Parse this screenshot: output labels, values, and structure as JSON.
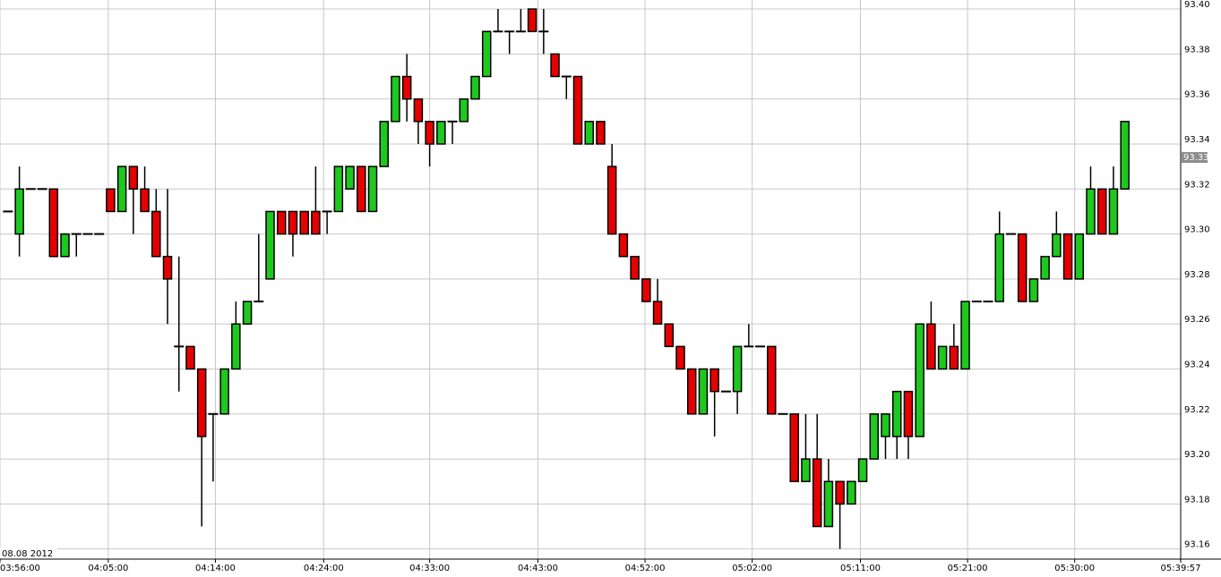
{
  "chart_data": {
    "type": "candlestick",
    "date_label": "08.08 2012",
    "up_color": "#1ec81e",
    "down_color": "#e60000",
    "price_marker": {
      "value": 93.334,
      "label": "93.33"
    },
    "grid": true,
    "xlim": [
      -0.7,
      102.9
    ],
    "xticks": [
      {
        "value": -0.7,
        "label": "03:56:00"
      },
      {
        "value": 8.8,
        "label": "04:05:00"
      },
      {
        "value": 18.2,
        "label": "04:14:00"
      },
      {
        "value": 27.7,
        "label": "04:24:00"
      },
      {
        "value": 37,
        "label": "04:33:00"
      },
      {
        "value": 46.5,
        "label": "04:43:00"
      },
      {
        "value": 55.9,
        "label": "04:52:00"
      },
      {
        "value": 65.3,
        "label": "05:02:00"
      },
      {
        "value": 74.8,
        "label": "05:11:00"
      },
      {
        "value": 84.2,
        "label": "05:21:00"
      },
      {
        "value": 93.6,
        "label": "05:30:00"
      },
      {
        "value": 102.9,
        "label": "05:39:57"
      }
    ],
    "ylim": [
      93.1555,
      93.404
    ],
    "yticks": [
      93.16,
      93.18,
      {
        "value": 93.2,
        "label": "93.20"
      },
      93.22,
      93.24,
      93.26,
      93.28,
      {
        "value": 93.3,
        "label": "93.30"
      },
      93.32,
      93.34,
      93.36,
      93.38,
      {
        "value": 93.4,
        "label": "93.40"
      }
    ],
    "open": [
      93.31,
      93.3,
      93.32,
      93.32,
      93.32,
      93.29,
      93.3,
      93.3,
      93.3,
      93.32,
      93.31,
      93.33,
      93.32,
      93.31,
      93.29,
      93.25,
      93.25,
      93.24,
      93.22,
      93.22,
      93.24,
      93.26,
      93.27,
      93.28,
      93.31,
      93.31,
      93.31,
      93.31,
      93.31,
      93.31,
      93.32,
      93.33,
      93.31,
      93.33,
      93.35,
      93.37,
      93.36,
      93.35,
      93.34,
      93.35,
      93.35,
      93.36,
      93.37,
      93.39,
      93.39,
      93.39,
      93.4,
      93.39,
      93.38,
      93.37,
      93.37,
      93.34,
      93.35,
      93.33,
      93.3,
      93.29,
      93.28,
      93.27,
      93.26,
      93.25,
      93.24,
      93.22,
      93.24,
      93.23,
      93.23,
      93.25,
      93.25,
      93.25,
      93.22,
      93.22,
      93.19,
      93.2,
      93.17,
      93.19,
      93.18,
      93.19,
      93.2,
      93.21,
      93.21,
      93.23,
      93.21,
      93.26,
      93.24,
      93.25,
      93.24,
      93.27,
      93.27,
      93.27,
      93.3,
      93.3,
      93.27,
      93.28,
      93.29,
      93.3,
      93.28,
      93.3,
      93.32,
      93.3,
      93.32
    ],
    "high": [
      93.31,
      93.33,
      93.32,
      93.32,
      93.32,
      93.3,
      93.3,
      93.3,
      93.3,
      93.32,
      93.33,
      93.33,
      93.33,
      93.32,
      93.32,
      93.29,
      93.25,
      93.24,
      93.22,
      93.24,
      93.27,
      93.27,
      93.3,
      93.31,
      93.31,
      93.31,
      93.31,
      93.33,
      93.31,
      93.33,
      93.33,
      93.33,
      93.33,
      93.35,
      93.37,
      93.38,
      93.36,
      93.35,
      93.35,
      93.35,
      93.36,
      93.37,
      93.39,
      93.4,
      93.39,
      93.4,
      93.4,
      93.4,
      93.38,
      93.37,
      93.37,
      93.35,
      93.35,
      93.34,
      93.3,
      93.29,
      93.28,
      93.28,
      93.26,
      93.25,
      93.24,
      93.24,
      93.24,
      93.23,
      93.25,
      93.26,
      93.25,
      93.25,
      93.22,
      93.22,
      93.22,
      93.22,
      93.2,
      93.19,
      93.19,
      93.2,
      93.22,
      93.22,
      93.23,
      93.23,
      93.26,
      93.27,
      93.25,
      93.26,
      93.27,
      93.27,
      93.27,
      93.31,
      93.3,
      93.3,
      93.28,
      93.29,
      93.31,
      93.3,
      93.3,
      93.33,
      93.32,
      93.33,
      93.35
    ],
    "low": [
      93.31,
      93.29,
      93.32,
      93.32,
      93.29,
      93.29,
      93.29,
      93.3,
      93.3,
      93.31,
      93.31,
      93.3,
      93.31,
      93.29,
      93.26,
      93.23,
      93.24,
      93.17,
      93.19,
      93.22,
      93.24,
      93.26,
      93.27,
      93.28,
      93.3,
      93.29,
      93.3,
      93.3,
      93.3,
      93.31,
      93.32,
      93.31,
      93.31,
      93.33,
      93.35,
      93.35,
      93.34,
      93.33,
      93.34,
      93.34,
      93.35,
      93.36,
      93.37,
      93.39,
      93.38,
      93.39,
      93.39,
      93.38,
      93.37,
      93.36,
      93.34,
      93.34,
      93.34,
      93.3,
      93.29,
      93.28,
      93.27,
      93.26,
      93.25,
      93.24,
      93.22,
      93.22,
      93.21,
      93.23,
      93.22,
      93.25,
      93.25,
      93.22,
      93.22,
      93.19,
      93.19,
      93.17,
      93.17,
      93.16,
      93.18,
      93.19,
      93.2,
      93.2,
      93.2,
      93.2,
      93.21,
      93.24,
      93.24,
      93.24,
      93.24,
      93.27,
      93.27,
      93.27,
      93.3,
      93.27,
      93.27,
      93.28,
      93.29,
      93.28,
      93.28,
      93.3,
      93.3,
      93.3,
      93.32
    ],
    "close": [
      93.31,
      93.32,
      93.32,
      93.32,
      93.29,
      93.3,
      93.3,
      93.3,
      93.3,
      93.31,
      93.33,
      93.32,
      93.31,
      93.29,
      93.28,
      93.25,
      93.24,
      93.21,
      93.22,
      93.24,
      93.26,
      93.27,
      93.27,
      93.31,
      93.3,
      93.3,
      93.3,
      93.3,
      93.31,
      93.33,
      93.33,
      93.31,
      93.33,
      93.35,
      93.37,
      93.36,
      93.35,
      93.34,
      93.35,
      93.35,
      93.36,
      93.37,
      93.39,
      93.39,
      93.39,
      93.39,
      93.39,
      93.39,
      93.37,
      93.37,
      93.34,
      93.35,
      93.34,
      93.3,
      93.29,
      93.28,
      93.27,
      93.26,
      93.25,
      93.24,
      93.22,
      93.24,
      93.23,
      93.23,
      93.25,
      93.25,
      93.25,
      93.22,
      93.22,
      93.19,
      93.2,
      93.17,
      93.19,
      93.18,
      93.19,
      93.2,
      93.22,
      93.22,
      93.23,
      93.21,
      93.26,
      93.24,
      93.25,
      93.24,
      93.27,
      93.27,
      93.27,
      93.3,
      93.3,
      93.27,
      93.28,
      93.29,
      93.3,
      93.28,
      93.3,
      93.32,
      93.3,
      93.32,
      93.35
    ]
  }
}
